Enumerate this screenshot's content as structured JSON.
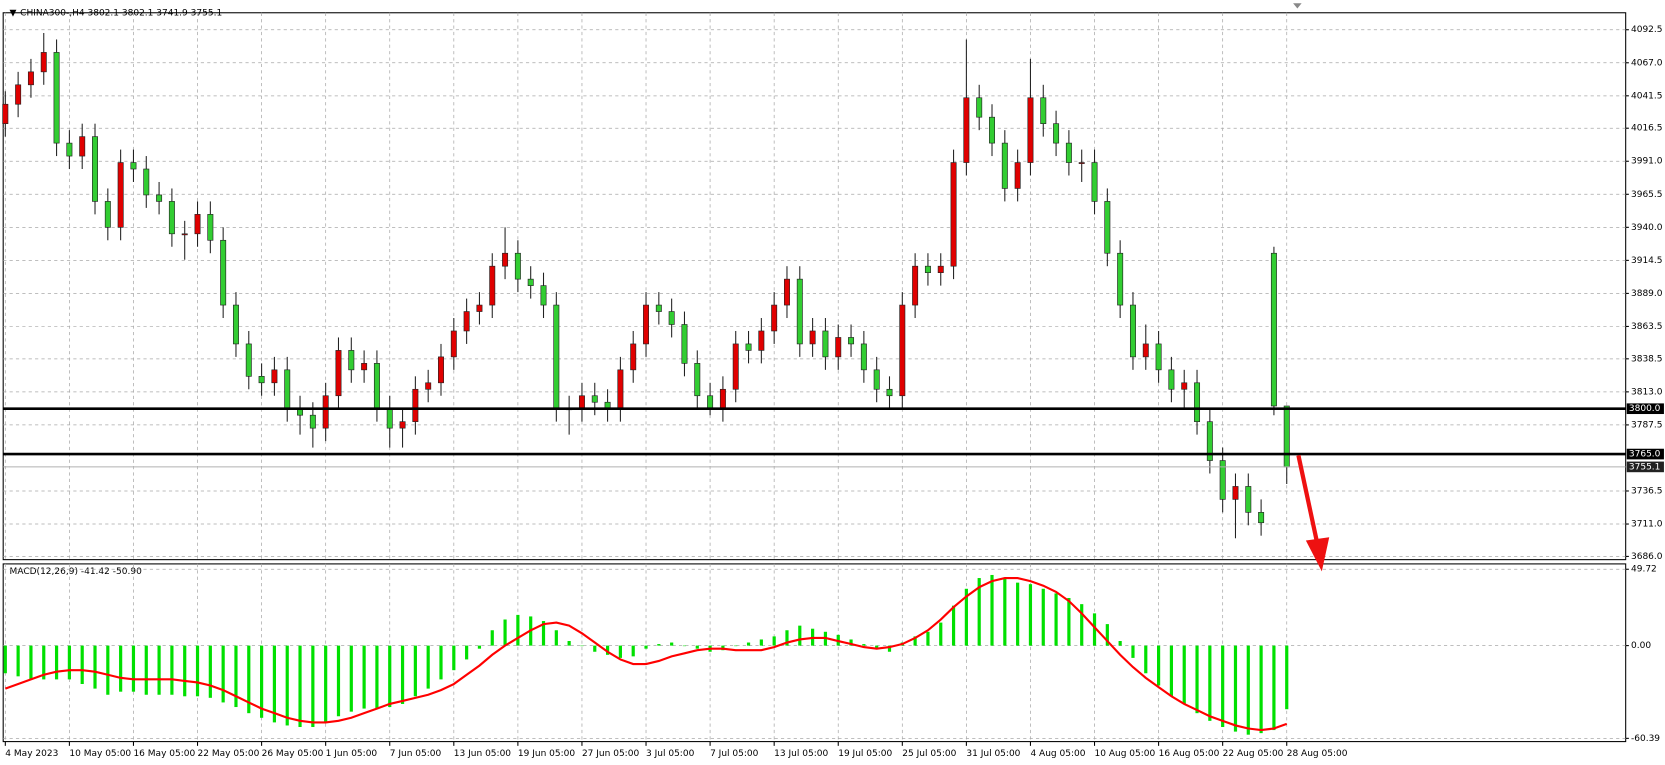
{
  "chart_data": [
    {
      "type": "candlestick",
      "title": "CHINA300-,H4  3802.1 3802.1 3741.9 3755.1",
      "categories": [
        "4 May 2023",
        null,
        null,
        null,
        null,
        "10 May 05:00",
        null,
        null,
        null,
        null,
        "16 May 05:00",
        null,
        null,
        null,
        null,
        "22 May 05:00",
        null,
        null,
        null,
        null,
        "26 May 05:00",
        null,
        null,
        null,
        null,
        "1 Jun 05:00",
        null,
        null,
        null,
        null,
        "7 Jun 05:00",
        null,
        null,
        null,
        null,
        "13 Jun 05:00",
        null,
        null,
        null,
        null,
        "19 Jun 05:00",
        null,
        null,
        null,
        null,
        "27 Jun 05:00",
        null,
        null,
        null,
        null,
        "3 Jul 05:00",
        null,
        null,
        null,
        null,
        "7 Jul 05:00",
        null,
        null,
        null,
        null,
        "13 Jul 05:00",
        null,
        null,
        null,
        null,
        "19 Jul 05:00",
        null,
        null,
        null,
        null,
        "25 Jul 05:00",
        null,
        null,
        null,
        null,
        "31 Jul 05:00",
        null,
        null,
        null,
        null,
        "4 Aug 05:00",
        null,
        null,
        null,
        null,
        "10 Aug 05:00",
        null,
        null,
        null,
        null,
        "16 Aug 05:00",
        null,
        null,
        null,
        null,
        "22 Aug 05:00",
        null,
        null,
        null,
        null,
        "28 Aug 05:00"
      ],
      "open": [
        4020,
        4035,
        4050,
        4060,
        4075,
        4005,
        3995,
        4010,
        3960,
        3940,
        3990,
        3985,
        3965,
        3960,
        3935,
        3935,
        3950,
        3930,
        3880,
        3850,
        3825,
        3820,
        3830,
        3800,
        3795,
        3785,
        3810,
        3845,
        3830,
        3835,
        3800,
        3785,
        3790,
        3815,
        3820,
        3840,
        3860,
        3875,
        3880,
        3910,
        3920,
        3900,
        3895,
        3880,
        3800,
        3800,
        3810,
        3805,
        3800,
        3830,
        3850,
        3880,
        3875,
        3865,
        3835,
        3810,
        3800,
        3815,
        3850,
        3845,
        3860,
        3880,
        3900,
        3850,
        3860,
        3840,
        3855,
        3850,
        3830,
        3815,
        3810,
        3880,
        3910,
        3905,
        3910,
        3990,
        4040,
        4025,
        4005,
        3970,
        3990,
        4040,
        4020,
        4005,
        3990,
        3990,
        3960,
        3920,
        3880,
        3840,
        3850,
        3830,
        3815,
        3820,
        3790,
        3760,
        3730,
        3740,
        3720,
        3920,
        3802.1
      ],
      "high": [
        4045,
        4060,
        4070,
        4090,
        4085,
        4015,
        4020,
        4020,
        3970,
        4000,
        4000,
        3995,
        3975,
        3970,
        3945,
        3960,
        3960,
        3940,
        3890,
        3860,
        3835,
        3840,
        3840,
        3810,
        3805,
        3820,
        3855,
        3855,
        3845,
        3845,
        3810,
        3800,
        3825,
        3830,
        3850,
        3870,
        3885,
        3890,
        3920,
        3940,
        3930,
        3910,
        3905,
        3890,
        3810,
        3820,
        3820,
        3815,
        3840,
        3860,
        3890,
        3890,
        3885,
        3875,
        3845,
        3820,
        3825,
        3860,
        3860,
        3870,
        3890,
        3910,
        3910,
        3870,
        3870,
        3865,
        3865,
        3860,
        3840,
        3825,
        3890,
        3920,
        3920,
        3920,
        4000,
        4085,
        4050,
        4035,
        4015,
        4000,
        4070,
        4050,
        4030,
        4015,
        4000,
        4000,
        3970,
        3930,
        3890,
        3865,
        3860,
        3840,
        3830,
        3830,
        3800,
        3770,
        3750,
        3750,
        3730,
        3925,
        3802.1
      ],
      "low": [
        4010,
        4025,
        4040,
        4050,
        3995,
        3985,
        3985,
        3950,
        3930,
        3930,
        3975,
        3955,
        3950,
        3925,
        3915,
        3925,
        3920,
        3870,
        3840,
        3815,
        3810,
        3810,
        3790,
        3780,
        3770,
        3775,
        3800,
        3820,
        3820,
        3790,
        3770,
        3770,
        3780,
        3805,
        3810,
        3830,
        3850,
        3865,
        3870,
        3900,
        3890,
        3885,
        3870,
        3790,
        3780,
        3790,
        3795,
        3790,
        3790,
        3820,
        3840,
        3865,
        3855,
        3825,
        3800,
        3795,
        3790,
        3805,
        3835,
        3835,
        3850,
        3870,
        3840,
        3840,
        3830,
        3830,
        3840,
        3820,
        3805,
        3800,
        3800,
        3870,
        3895,
        3895,
        3900,
        3980,
        4015,
        3995,
        3960,
        3960,
        3980,
        4010,
        3995,
        3980,
        3975,
        3950,
        3910,
        3870,
        3830,
        3830,
        3820,
        3805,
        3800,
        3780,
        3750,
        3720,
        3700,
        3710,
        3702,
        3795,
        3741.9
      ],
      "close": [
        4035,
        4050,
        4060,
        4075,
        4005,
        3995,
        4010,
        3960,
        3940,
        3990,
        3985,
        3965,
        3960,
        3935,
        3935,
        3950,
        3930,
        3880,
        3850,
        3825,
        3820,
        3830,
        3800,
        3795,
        3785,
        3810,
        3845,
        3830,
        3835,
        3800,
        3785,
        3790,
        3815,
        3820,
        3840,
        3860,
        3875,
        3880,
        3910,
        3920,
        3900,
        3895,
        3880,
        3800,
        3800,
        3810,
        3805,
        3800,
        3830,
        3850,
        3880,
        3875,
        3865,
        3835,
        3810,
        3800,
        3815,
        3850,
        3845,
        3860,
        3880,
        3900,
        3850,
        3860,
        3840,
        3855,
        3850,
        3830,
        3815,
        3810,
        3880,
        3910,
        3905,
        3910,
        3990,
        4040,
        4025,
        4005,
        3970,
        3990,
        4040,
        4020,
        4005,
        3990,
        3990,
        3960,
        3920,
        3880,
        3840,
        3850,
        3830,
        3815,
        3820,
        3790,
        3760,
        3730,
        3740,
        3720,
        3712,
        3802.1,
        3755.1
      ],
      "up_color": "#e00000",
      "down_color": "#32cd32",
      "ylim": [
        3683.5,
        4105.6
      ],
      "yticks": [
        4092.5,
        {
          "value": 4067,
          "label": "4067.0"
        },
        4041.5,
        4016.5,
        {
          "value": 3991,
          "label": "3991.0"
        },
        3965.5,
        {
          "value": 3940,
          "label": "3940.0"
        },
        3914.5,
        {
          "value": 3889,
          "label": "3889.0"
        },
        3863.5,
        3838.5,
        {
          "value": 3813,
          "label": "3813.0"
        },
        3787.5,
        3736.5,
        {
          "value": 3711,
          "label": "3711.0"
        },
        {
          "value": 3686,
          "label": "3686.0"
        }
      ],
      "levels": [
        {
          "value": 3800,
          "label": "3800.0"
        },
        {
          "value": 3765,
          "label": "3765.0"
        }
      ],
      "price_line": 3755.1,
      "grid": true
    },
    {
      "type": "macd",
      "title": "MACD(12,26,9) -41.42 -50.90",
      "histogram": {
        "color": "#00e000",
        "values": [
          -18,
          -20,
          -22,
          -22,
          -22,
          -22,
          -25,
          -28,
          -32,
          -30,
          -30,
          -32,
          -32,
          -32,
          -33,
          -33,
          -34,
          -37,
          -40,
          -44,
          -47,
          -50,
          -52,
          -53,
          -53,
          -50,
          -46,
          -43,
          -41,
          -41,
          -40,
          -38,
          -33,
          -28,
          -22,
          -16,
          -9,
          -2,
          10,
          17,
          20,
          19,
          16,
          10,
          3,
          0,
          -4,
          -6,
          -8,
          -7,
          -2,
          1,
          2,
          0,
          -2,
          -4,
          -3,
          0,
          2,
          4,
          6,
          10,
          13,
          11,
          9,
          7,
          4,
          1,
          -2,
          -4,
          2,
          6,
          9,
          15,
          26,
          37,
          44,
          46,
          44,
          41,
          40,
          37,
          34,
          31,
          27,
          21,
          14,
          3,
          -8,
          -18,
          -26,
          -33,
          -38,
          -44,
          -49,
          -53,
          -56,
          -58,
          -57,
          -55,
          -41.42
        ]
      },
      "signal": {
        "color": "#ff0000",
        "values": [
          -28,
          -25,
          -22,
          -19,
          -17,
          -16,
          -16,
          -17,
          -19,
          -21,
          -22,
          -22,
          -22,
          -22,
          -23,
          -24,
          -26,
          -29,
          -33,
          -37,
          -41,
          -44,
          -47,
          -49,
          -50,
          -50,
          -49,
          -47,
          -44,
          -41,
          -38,
          -36,
          -34,
          -32,
          -29,
          -25,
          -19,
          -13,
          -6,
          0,
          5,
          10,
          14,
          15,
          13,
          8,
          2,
          -4,
          -9,
          -12,
          -12,
          -10,
          -7,
          -5,
          -3,
          -2,
          -2,
          -3,
          -3,
          -3,
          -1,
          2,
          4,
          5,
          5,
          3,
          1,
          -1,
          -2,
          -1,
          1,
          5,
          10,
          17,
          25,
          32,
          38,
          42,
          44,
          44,
          42,
          39,
          35,
          29,
          21,
          12,
          3,
          -6,
          -14,
          -21,
          -27,
          -33,
          -38,
          -42,
          -46,
          -49,
          -52,
          -54,
          -55,
          -54,
          -50.9
        ]
      },
      "ylim": [
        -62.5,
        53.2
      ],
      "yticks": [
        49.72,
        {
          "value": 0,
          "label": "0.00"
        },
        -60.39
      ],
      "grid": true
    }
  ]
}
